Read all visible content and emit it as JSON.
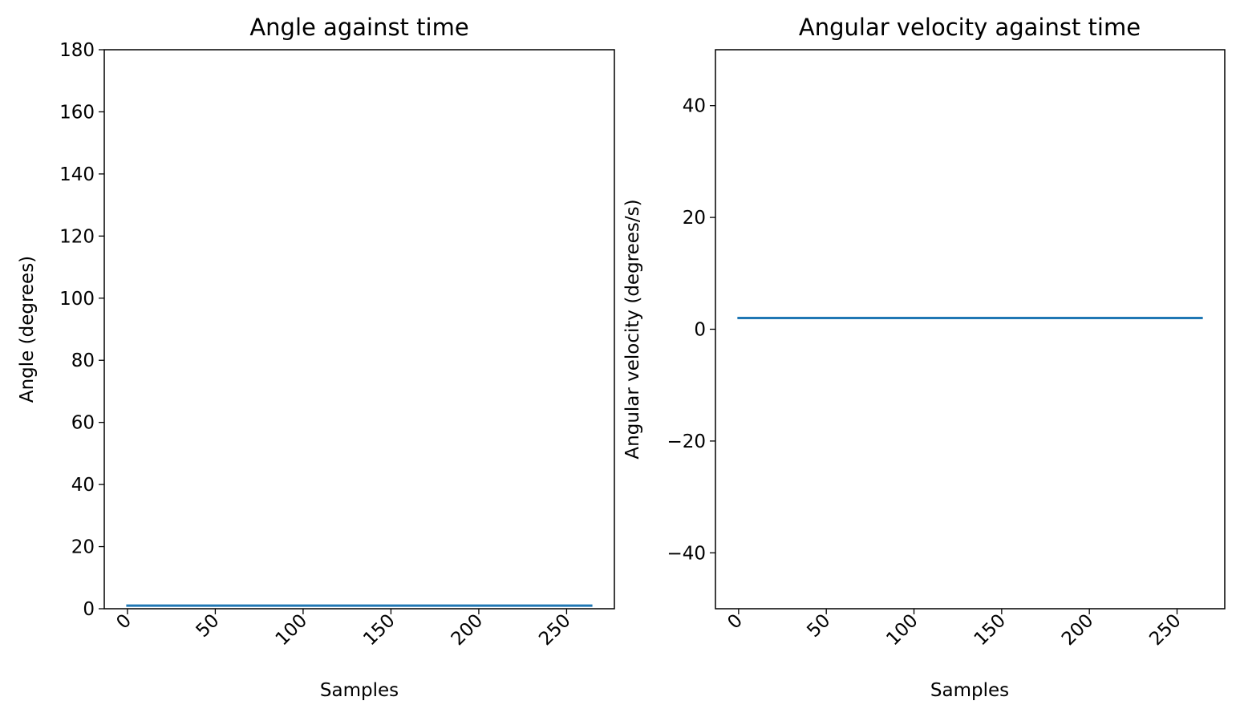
{
  "chart_data": [
    {
      "type": "line",
      "title": "Angle against time",
      "xlabel": "Samples",
      "ylabel": "Angle (degrees)",
      "xlim": [
        -13.2,
        277.2
      ],
      "ylim": [
        0,
        180
      ],
      "xticks": [
        0,
        50,
        100,
        150,
        200,
        250
      ],
      "xtick_labels": [
        "0",
        "50",
        "100",
        "150",
        "200",
        "250"
      ],
      "xtick_rotation": 45,
      "yticks": [
        0,
        20,
        40,
        60,
        80,
        100,
        120,
        140,
        160,
        180
      ],
      "ytick_labels": [
        "0",
        "20",
        "40",
        "60",
        "80",
        "100",
        "120",
        "140",
        "160",
        "180"
      ],
      "grid": false,
      "series": [
        {
          "x": [
            0,
            264
          ],
          "y": [
            1,
            1
          ],
          "color": "#1f77b4"
        }
      ]
    },
    {
      "type": "line",
      "title": "Angular velocity against time",
      "xlabel": "Samples",
      "ylabel": "Angular velocity (degrees/s)",
      "xlim": [
        -13.2,
        277.2
      ],
      "ylim": [
        -50,
        50
      ],
      "xticks": [
        0,
        50,
        100,
        150,
        200,
        250
      ],
      "xtick_labels": [
        "0",
        "50",
        "100",
        "150",
        "200",
        "250"
      ],
      "xtick_rotation": 45,
      "yticks": [
        -40,
        -20,
        0,
        20,
        40
      ],
      "ytick_labels": [
        "−40",
        "−20",
        "0",
        "20",
        "40"
      ],
      "grid": false,
      "series": [
        {
          "x": [
            0,
            264
          ],
          "y": [
            2,
            2
          ],
          "color": "#1f77b4"
        }
      ]
    }
  ]
}
